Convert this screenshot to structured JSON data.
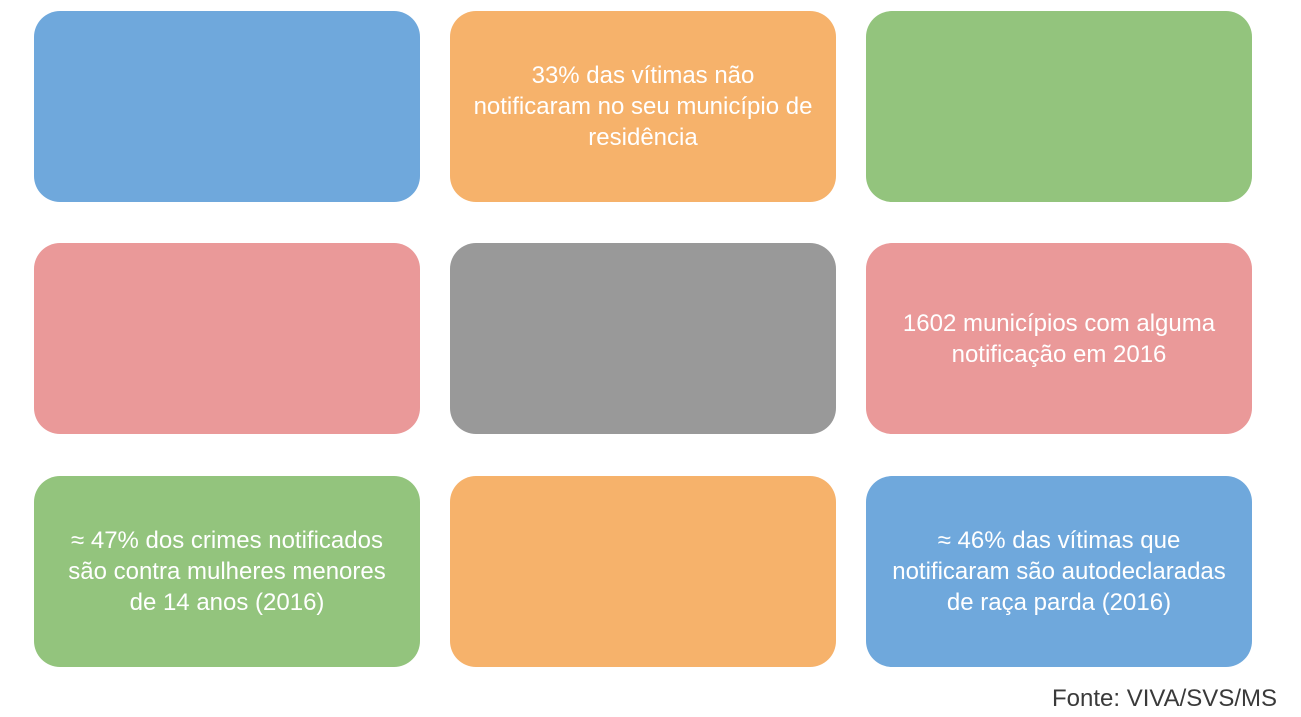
{
  "colors": {
    "blue": "#6fa8dc",
    "orange": "#f6b26b",
    "green": "#93c47d",
    "red": "#ea9999",
    "gray": "#999999"
  },
  "tiles": [
    {
      "text": "",
      "color": "#6fa8dc"
    },
    {
      "text": "33% das vítimas não notificaram no seu município de residência",
      "color": "#f6b26b"
    },
    {
      "text": "",
      "color": "#93c47d"
    },
    {
      "text": "",
      "color": "#ea9999"
    },
    {
      "text": "",
      "color": "#999999"
    },
    {
      "text": "1602 municípios com alguma notificação em 2016",
      "color": "#ea9999"
    },
    {
      "text": "≈ 47% dos crimes notificados são contra mulheres menores de 14 anos (2016)",
      "color": "#93c47d"
    },
    {
      "text": "",
      "color": "#f6b26b"
    },
    {
      "text": "≈ 46% das vítimas que notificaram são autodeclaradas de raça parda (2016)",
      "color": "#6fa8dc"
    }
  ],
  "source": "Fonte: VIVA/SVS/MS"
}
